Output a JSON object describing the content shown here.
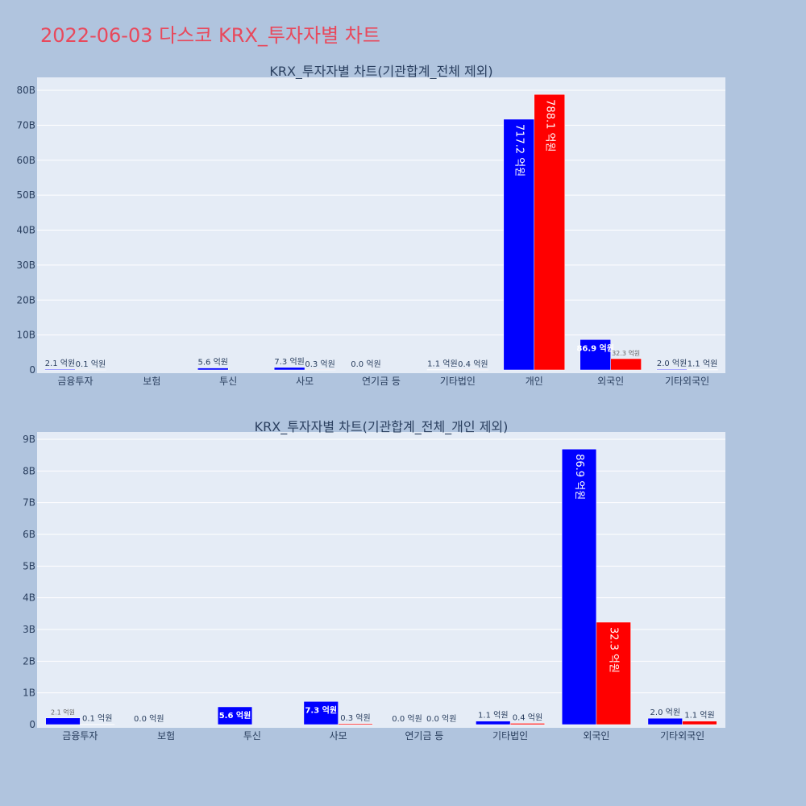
{
  "title": "2022-06-03 다스코 KRX_투자자별 차트",
  "colors": {
    "series_a": "#0000ff",
    "series_b": "#ff0000",
    "title": "#e8495c",
    "plot_bg": "#e5ecf6",
    "page_bg": "#b0c4de"
  },
  "chart_data": [
    {
      "type": "bar",
      "title": "KRX_투자자별 차트(기관합계_전체 제외)",
      "categories": [
        "금융투자",
        "보험",
        "투신",
        "사모",
        "연기금 등",
        "기타법인",
        "개인",
        "외국인",
        "기타외국인"
      ],
      "series": [
        {
          "values": [
            210000000,
            0,
            560000000,
            730000000,
            0,
            110000000,
            71720000000,
            8690000000,
            200000000
          ],
          "labels": [
            "2.1 억원",
            "",
            "5.6 억원",
            "7.3 억원",
            "0.0 억원",
            "1.1 억원",
            "717.2 억원",
            "86.9 억원",
            "2.0 억원"
          ]
        },
        {
          "values": [
            10000000,
            0,
            0,
            30000000,
            0,
            40000000,
            78810000000,
            3230000000,
            110000000
          ],
          "labels": [
            "0.1 억원",
            "",
            "",
            "0.3 억원",
            "",
            "0.4 억원",
            "788.1 억원",
            "32.3 억원",
            "1.1 억원"
          ]
        }
      ],
      "yticks": [
        "0",
        "10B",
        "20B",
        "30B",
        "40B",
        "50B",
        "60B",
        "70B",
        "80B"
      ],
      "ylim": [
        0,
        80000000000
      ]
    },
    {
      "type": "bar",
      "title": "KRX_투자자별 차트(기관합계_전체_개인 제외)",
      "categories": [
        "금융투자",
        "보험",
        "투신",
        "사모",
        "연기금 등",
        "기타법인",
        "외국인",
        "기타외국인"
      ],
      "series": [
        {
          "values": [
            210000000,
            0,
            560000000,
            730000000,
            0,
            110000000,
            8690000000,
            200000000
          ],
          "labels": [
            "2.1 억원",
            "0.0 억원",
            "5.6 억원",
            "7.3 억원",
            "0.0 억원",
            "1.1 억원",
            "86.9 억원",
            "2.0 억원"
          ]
        },
        {
          "values": [
            10000000,
            0,
            0,
            30000000,
            0,
            40000000,
            3230000000,
            110000000
          ],
          "labels": [
            "0.1 억원",
            "",
            "",
            "0.3 억원",
            "0.0 억원",
            "0.4 억원",
            "32.3 억원",
            "1.1 억원"
          ]
        }
      ],
      "yticks": [
        "0",
        "1B",
        "2B",
        "3B",
        "4B",
        "5B",
        "6B",
        "7B",
        "8B",
        "9B"
      ],
      "ylim": [
        0,
        9000000000
      ]
    }
  ]
}
